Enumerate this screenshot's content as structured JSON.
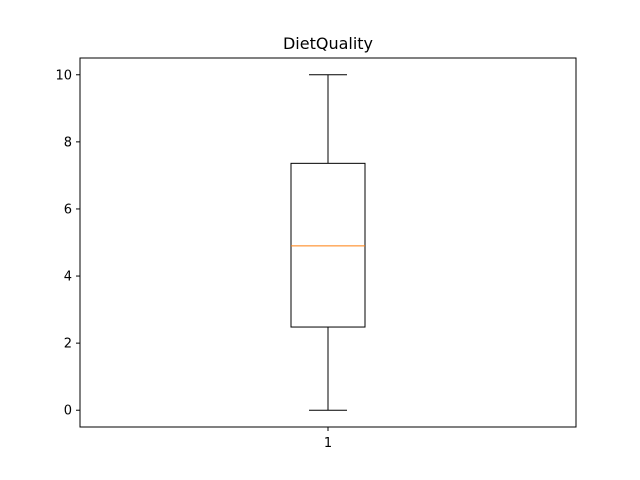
{
  "chart_data": {
    "type": "box",
    "title": "DietQuality",
    "xlabel": "",
    "ylabel": "",
    "categories": [
      "1"
    ],
    "ylim": [
      -0.5,
      10.5
    ],
    "yticks": [
      "0",
      "2",
      "4",
      "6",
      "8",
      "10"
    ],
    "grid": false,
    "boxes": [
      {
        "category": "1",
        "whisker_low": 0,
        "q1": 2.48,
        "median": 4.9,
        "q3": 7.36,
        "whisker_high": 10
      }
    ],
    "colors": {
      "box": "#000000",
      "median": "#ff7f0e",
      "axes": "#000000"
    }
  }
}
